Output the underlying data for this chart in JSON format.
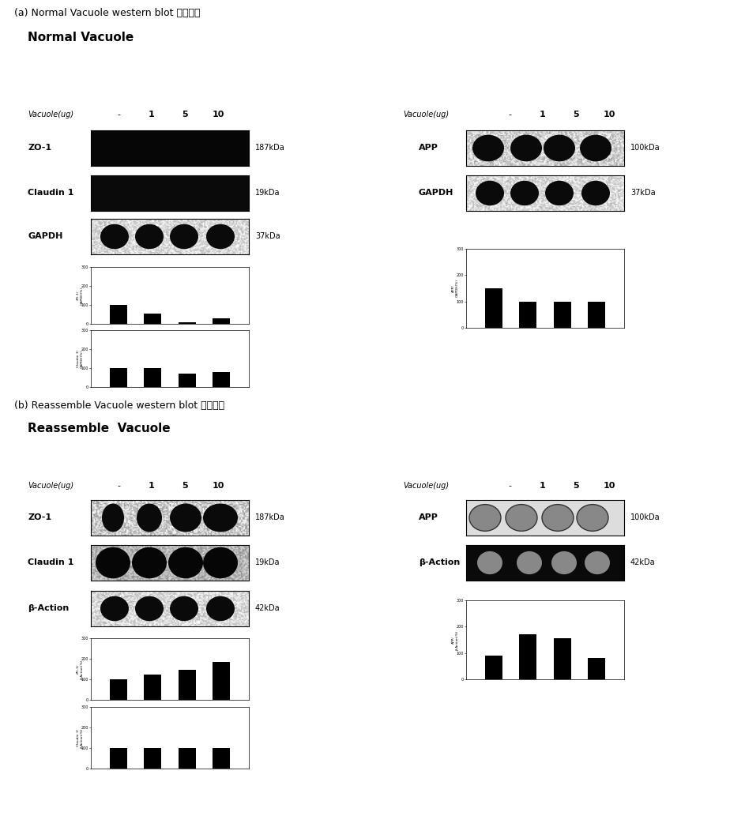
{
  "title_a": "(a) Normal Vacuole western blot 분석결과",
  "title_b": "(b) Reassemble Vacuole western blot 분석결과",
  "subtitle_a": "Normal Vacuole",
  "subtitle_b": "Reassemble  Vacuole",
  "vacuole_label": "Vacuole(ug)",
  "vacuole_ticks": [
    "-",
    "1",
    "5",
    "10"
  ],
  "panel_a_left_labels": [
    "ZO-1",
    "Claudin 1",
    "GAPDH"
  ],
  "panel_a_left_kda": [
    "187kDa",
    "19kDa",
    "37kDa"
  ],
  "panel_a_right_labels": [
    "APP",
    "GAPDH"
  ],
  "panel_a_right_kda": [
    "100kDa",
    "37kDa"
  ],
  "panel_b_left_labels": [
    "ZO-1",
    "Claudin 1",
    "β-Action"
  ],
  "panel_b_left_kda": [
    "187kDa",
    "19kDa",
    "42kDa"
  ],
  "panel_b_right_labels": [
    "APP",
    "β-Action"
  ],
  "panel_b_right_kda": [
    "100kDa",
    "42kDa"
  ],
  "bar_a_zo1": [
    100,
    55,
    10,
    30
  ],
  "bar_a_claudin1": [
    100,
    100,
    70,
    80
  ],
  "bar_a_app": [
    150,
    100,
    100,
    100
  ],
  "bar_b_zo1": [
    100,
    125,
    145,
    185
  ],
  "bar_b_claudin1": [
    100,
    100,
    100,
    100
  ],
  "bar_b_app": [
    90,
    170,
    155,
    80
  ],
  "fig_width": 9.43,
  "fig_height": 10.47,
  "dpi": 100
}
